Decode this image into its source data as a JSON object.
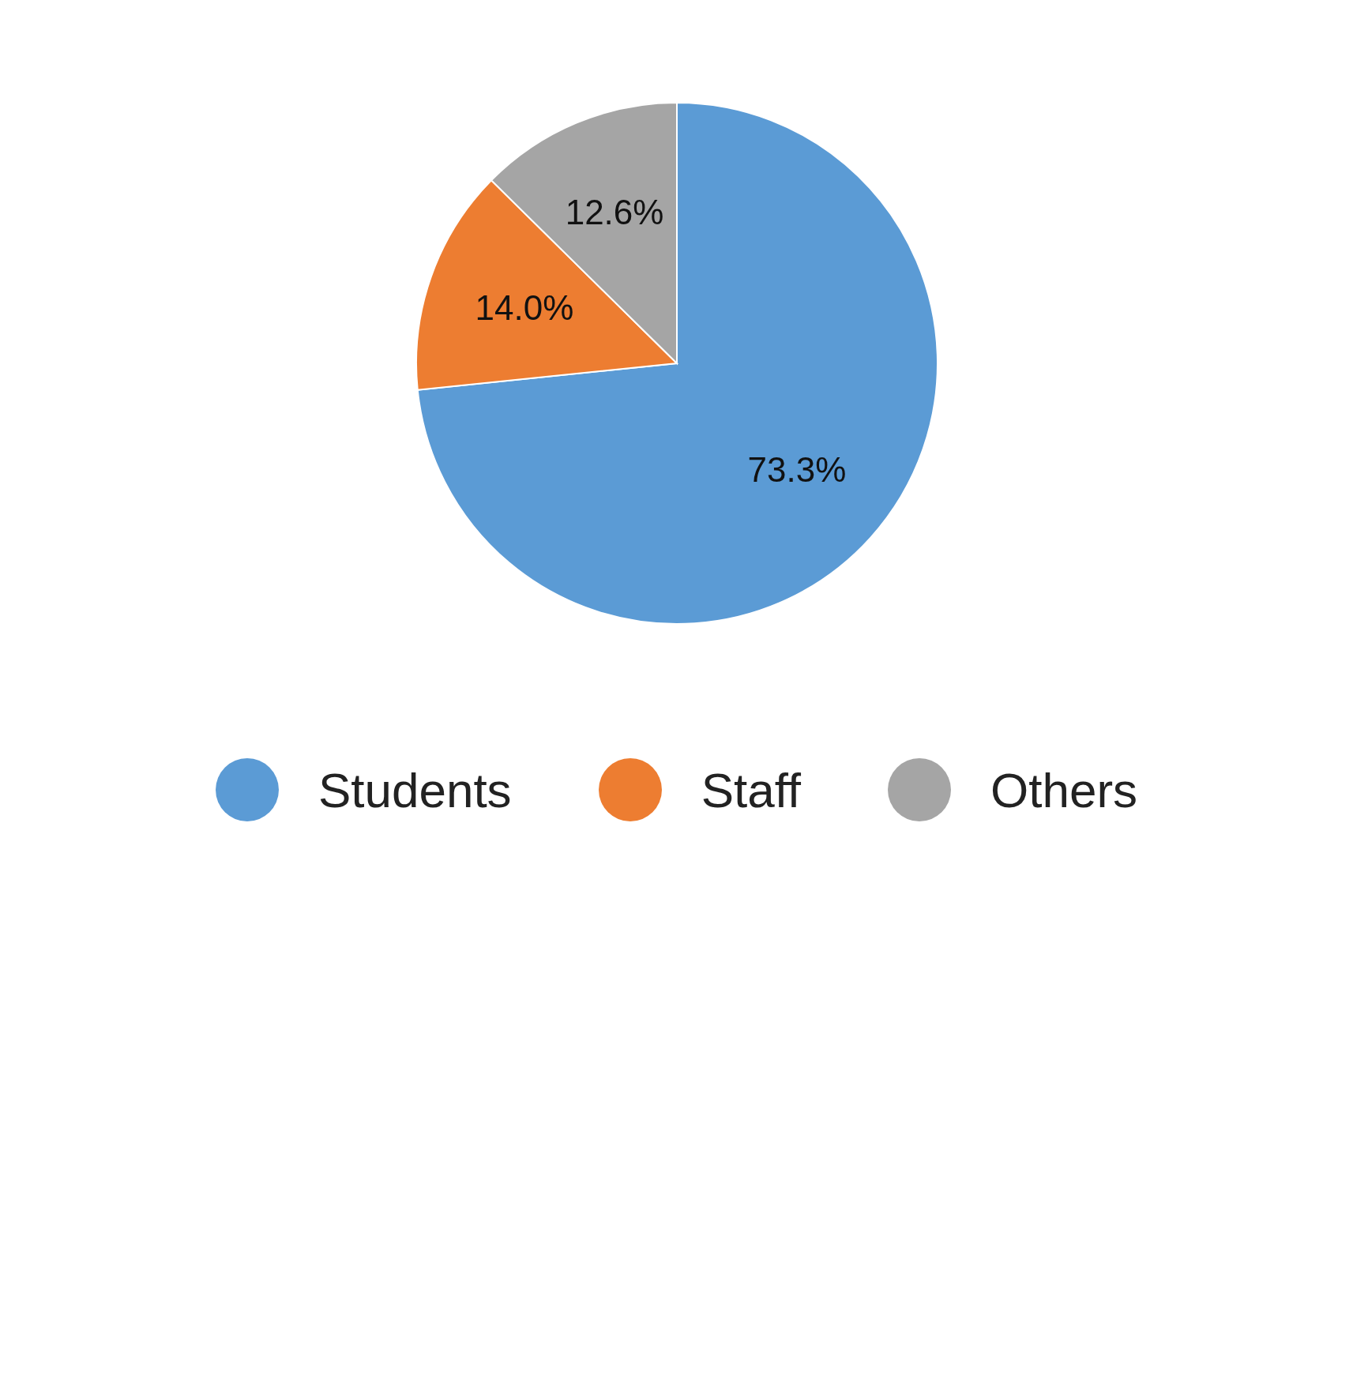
{
  "chart_data": {
    "type": "pie",
    "categories": [
      "Students",
      "Staff",
      "Others"
    ],
    "values": [
      73.3,
      14.0,
      12.6
    ],
    "colors": [
      "#5b9bd5",
      "#ed7d31",
      "#a5a5a5"
    ],
    "value_labels": [
      "73.3%",
      "14.0%",
      "12.6%"
    ],
    "legend": "bottom"
  }
}
